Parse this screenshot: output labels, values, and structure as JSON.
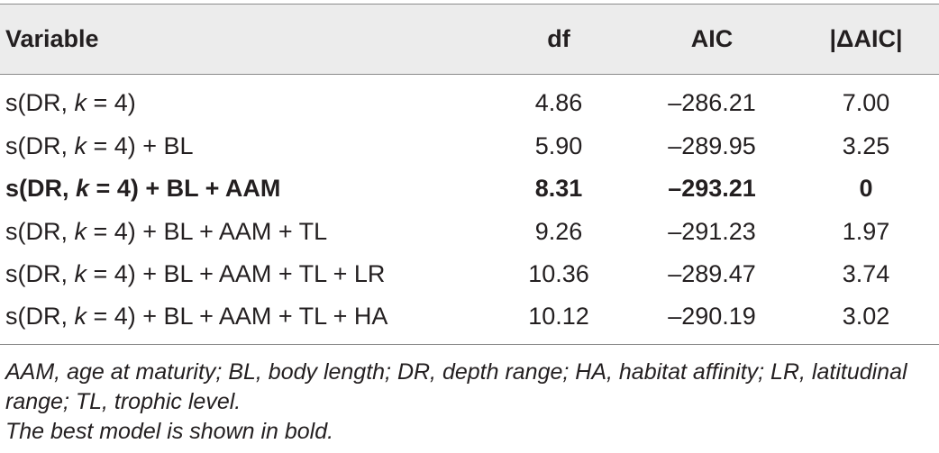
{
  "table": {
    "headers": {
      "variable": "Variable",
      "df": "df",
      "aic": "AIC",
      "delta_aic": "|ΔAIC|"
    },
    "rows": [
      {
        "variable": "s(DR, k = 4)",
        "df": "4.86",
        "aic": "–286.21",
        "delta_aic": "7.00",
        "bold": false
      },
      {
        "variable": "s(DR, k = 4) + BL",
        "df": "5.90",
        "aic": "–289.95",
        "delta_aic": "3.25",
        "bold": false
      },
      {
        "variable": "s(DR, k = 4) + BL + AAM",
        "df": "8.31",
        "aic": "–293.21",
        "delta_aic": "0",
        "bold": true
      },
      {
        "variable": "s(DR, k = 4) + BL + AAM + TL",
        "df": "9.26",
        "aic": "–291.23",
        "delta_aic": "1.97",
        "bold": false
      },
      {
        "variable": "s(DR, k = 4) + BL + AAM + TL + LR",
        "df": "10.36",
        "aic": "–289.47",
        "delta_aic": "3.74",
        "bold": false
      },
      {
        "variable": "s(DR, k = 4) + BL + AAM + TL + HA",
        "df": "10.12",
        "aic": "–290.19",
        "delta_aic": "3.02",
        "bold": false
      }
    ]
  },
  "footnotes": {
    "abbreviations": "AAM, age at maturity; BL, body length; DR, depth range; HA, habitat affinity; LR, latitudinal range; TL, trophic level.",
    "best_model_note": "The best model is shown in bold."
  }
}
